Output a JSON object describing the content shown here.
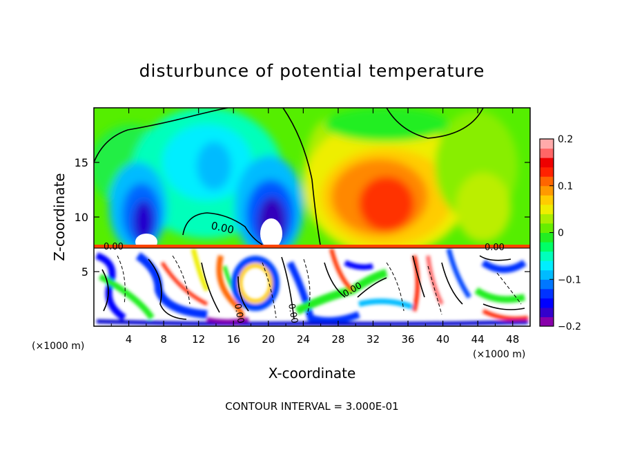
{
  "chart_data": {
    "type": "heatmap",
    "title": "disturbunce of potential temperature",
    "xlabel": "X-coordinate",
    "ylabel": "Z-coordinate",
    "x_unit_left": "(×1000 m)",
    "x_unit_right": "(×1000 m)",
    "xlim": [
      0,
      50
    ],
    "ylim": [
      0,
      20
    ],
    "x_ticks": [
      4,
      8,
      12,
      16,
      20,
      24,
      28,
      32,
      36,
      40,
      44,
      48
    ],
    "y_ticks": [
      5,
      10,
      15
    ],
    "contour_labels": [
      "0.00",
      "0.00",
      "0.00",
      "0.00",
      "0.00",
      "0.00"
    ],
    "footer": "CONTOUR INTERVAL = 3.000E-01",
    "colorbar": {
      "range": [
        -0.2,
        0.2
      ],
      "tick_values": [
        0.2,
        0.1,
        0,
        -0.1,
        -0.2
      ],
      "tick_labels": [
        "0.2",
        "0.1",
        "0",
        "−0.1",
        "−0.2"
      ],
      "colors": [
        "#8800aa",
        "#3300cc",
        "#0000ff",
        "#0033ff",
        "#0077ff",
        "#00bbff",
        "#00eeff",
        "#00ffbb",
        "#00ff66",
        "#22ee22",
        "#66ee00",
        "#aaee00",
        "#eeee00",
        "#ffcc00",
        "#ff9900",
        "#ff6600",
        "#ff2200",
        "#ee0000",
        "#ff6666",
        "#ffaaaa"
      ]
    }
  }
}
